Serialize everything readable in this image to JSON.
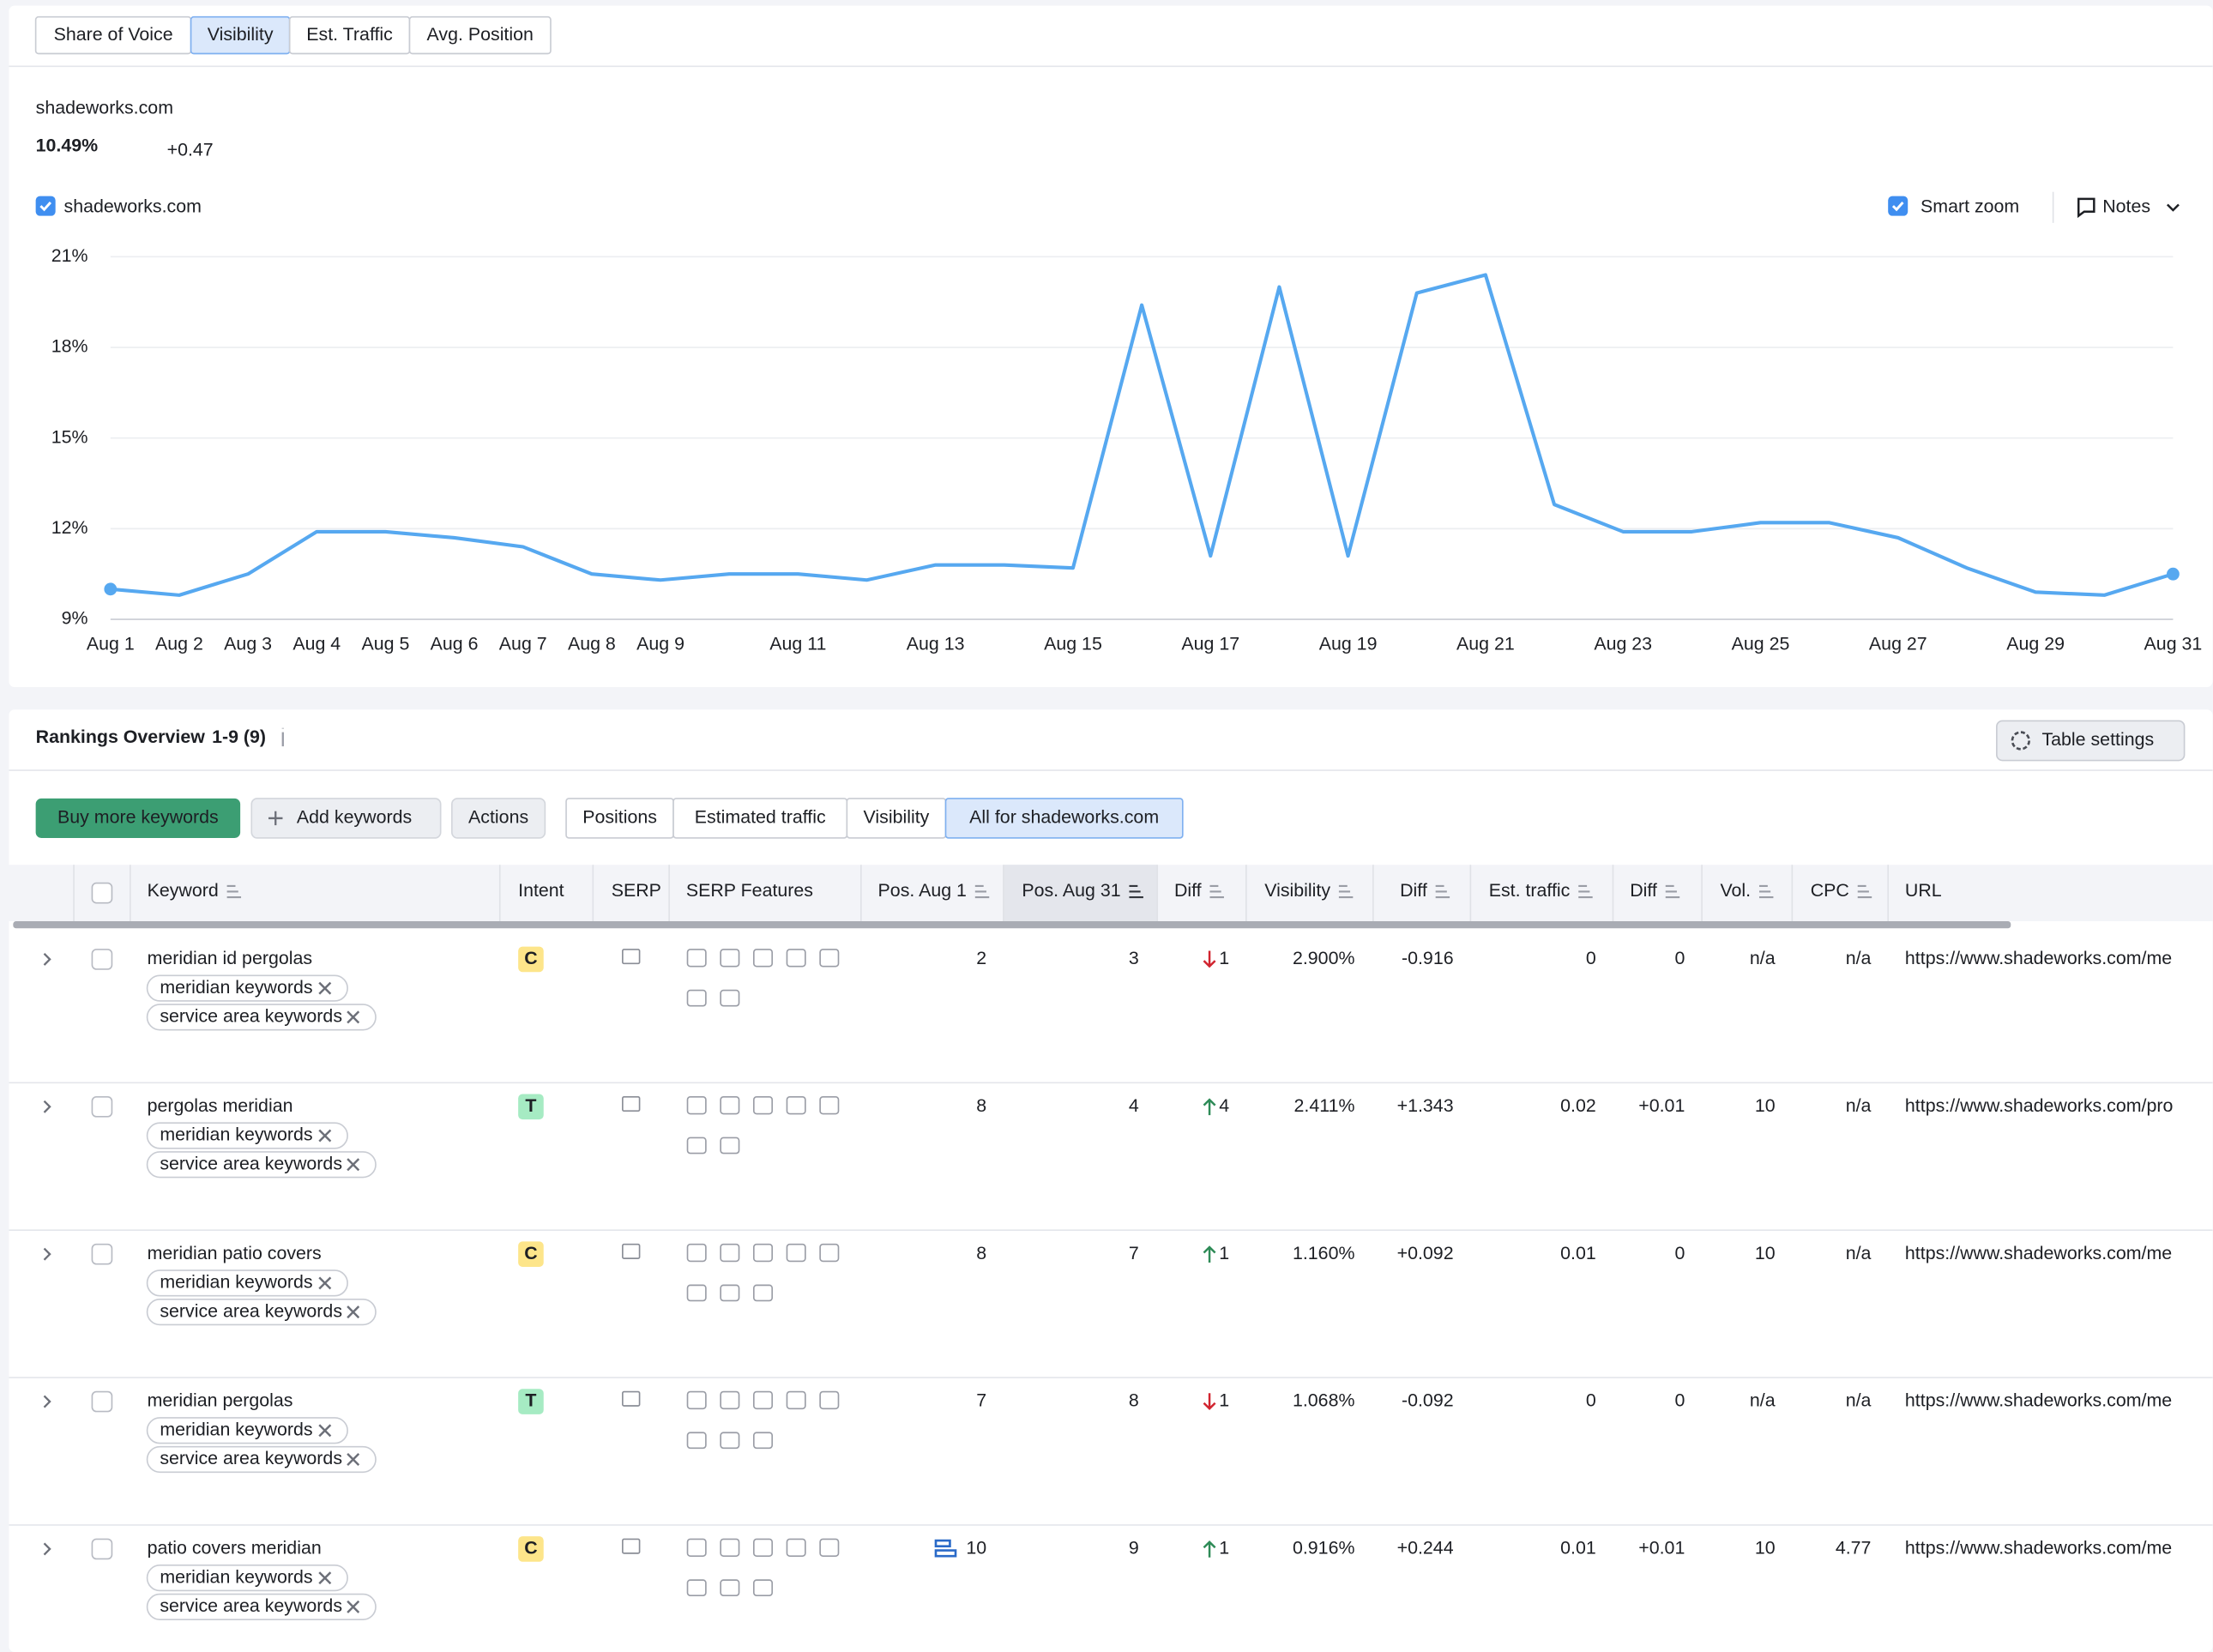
{
  "metric_tabs": [
    "Share of Voice",
    "Visibility",
    "Est. Traffic",
    "Avg. Position"
  ],
  "domain": "shadeworks.com",
  "score": "10.49%",
  "score_change": "+0.47",
  "legend_label": "shadeworks.com",
  "smart_zoom": "Smart zoom",
  "notes": "Notes",
  "chart_data": {
    "type": "line",
    "x": [
      "Aug 1",
      "Aug 2",
      "Aug 3",
      "Aug 4",
      "Aug 5",
      "Aug 6",
      "Aug 7",
      "Aug 8",
      "Aug 9",
      null,
      "Aug 11",
      null,
      "Aug 13",
      null,
      "Aug 15",
      null,
      "Aug 17",
      null,
      "Aug 19",
      null,
      "Aug 21",
      null,
      "Aug 23",
      null,
      "Aug 25",
      null,
      "Aug 27",
      null,
      "Aug 29",
      null,
      "Aug 31"
    ],
    "series": [
      {
        "name": "shadeworks.com",
        "color": "#56a8f0",
        "values": [
          10.0,
          9.8,
          10.5,
          11.9,
          11.9,
          11.7,
          11.4,
          10.5,
          10.3,
          10.5,
          10.5,
          10.3,
          10.8,
          10.8,
          10.7,
          19.4,
          11.1,
          20.0,
          11.1,
          19.8,
          20.4,
          12.8,
          11.9,
          11.9,
          12.2,
          12.2,
          11.7,
          10.7,
          9.9,
          9.8,
          10.5
        ]
      }
    ],
    "ylim": [
      9,
      21
    ],
    "yticks": [
      {
        "value": 9,
        "label": "9%"
      },
      {
        "value": 12,
        "label": "12%"
      },
      {
        "value": 15,
        "label": "15%"
      },
      {
        "value": 18,
        "label": "18%"
      },
      {
        "value": 21,
        "label": "21%"
      }
    ],
    "grid": true
  },
  "rankings": {
    "title": "Rankings Overview",
    "range": "1-9 (9)",
    "table_settings": "Table settings",
    "buttons": [
      "Buy more keywords",
      "Add keywords",
      "Actions"
    ],
    "view_tabs": [
      "Positions",
      "Estimated traffic",
      "Visibility",
      "All for shadeworks.com"
    ],
    "columns": [
      "Keyword",
      "Intent",
      "SERP",
      "SERP Features",
      "Pos. Aug 1",
      "Pos. Aug 31",
      "Diff",
      "Visibility",
      "Diff",
      "Est. traffic",
      "Diff",
      "Vol.",
      "CPC",
      "URL"
    ],
    "rows": [
      {
        "keyword": "meridian id pergolas",
        "tags": [
          "meridian keywords",
          "service area keywords"
        ],
        "intent": "C",
        "pos_aug1": "2",
        "pos_aug31": "3",
        "diff": "1",
        "trend": "down",
        "visibility": "2.900%",
        "visibility_diff": "-0.916",
        "est_traffic": "0",
        "traffic_diff": "0",
        "volume": "n/a",
        "cpc": "n/a",
        "url": "https://www.shadeworks.com/me"
      },
      {
        "keyword": "pergolas meridian",
        "tags": [
          "meridian keywords",
          "service area keywords"
        ],
        "intent": "T",
        "pos_aug1": "8",
        "pos_aug31": "4",
        "diff": "4",
        "trend": "up",
        "visibility": "2.411%",
        "visibility_diff": "+1.343",
        "est_traffic": "0.02",
        "traffic_diff": "+0.01",
        "volume": "10",
        "cpc": "n/a",
        "url": "https://www.shadeworks.com/pro"
      },
      {
        "keyword": "meridian patio covers",
        "tags": [
          "meridian keywords",
          "service area keywords"
        ],
        "intent": "C",
        "pos_aug1": "8",
        "pos_aug31": "7",
        "diff": "1",
        "trend": "up",
        "visibility": "1.160%",
        "visibility_diff": "+0.092",
        "est_traffic": "0.01",
        "traffic_diff": "0",
        "volume": "10",
        "cpc": "n/a",
        "url": "https://www.shadeworks.com/me"
      },
      {
        "keyword": "meridian pergolas",
        "tags": [
          "meridian keywords",
          "service area keywords"
        ],
        "intent": "T",
        "pos_aug1": "7",
        "pos_aug31": "8",
        "diff": "1",
        "trend": "down",
        "visibility": "1.068%",
        "visibility_diff": "-0.092",
        "est_traffic": "0",
        "traffic_diff": "0",
        "volume": "n/a",
        "cpc": "n/a",
        "url": "https://www.shadeworks.com/me"
      },
      {
        "keyword": "patio covers meridian",
        "tags": [
          "meridian keywords",
          "service area keywords"
        ],
        "intent": "C",
        "pos_aug1": "10",
        "pos_aug31": "9",
        "diff": "1",
        "trend": "up",
        "visibility": "0.916%",
        "visibility_diff": "+0.244",
        "est_traffic": "0.01",
        "traffic_diff": "+0.01",
        "volume": "10",
        "cpc": "4.77",
        "url": "https://www.shadeworks.com/me"
      }
    ]
  }
}
